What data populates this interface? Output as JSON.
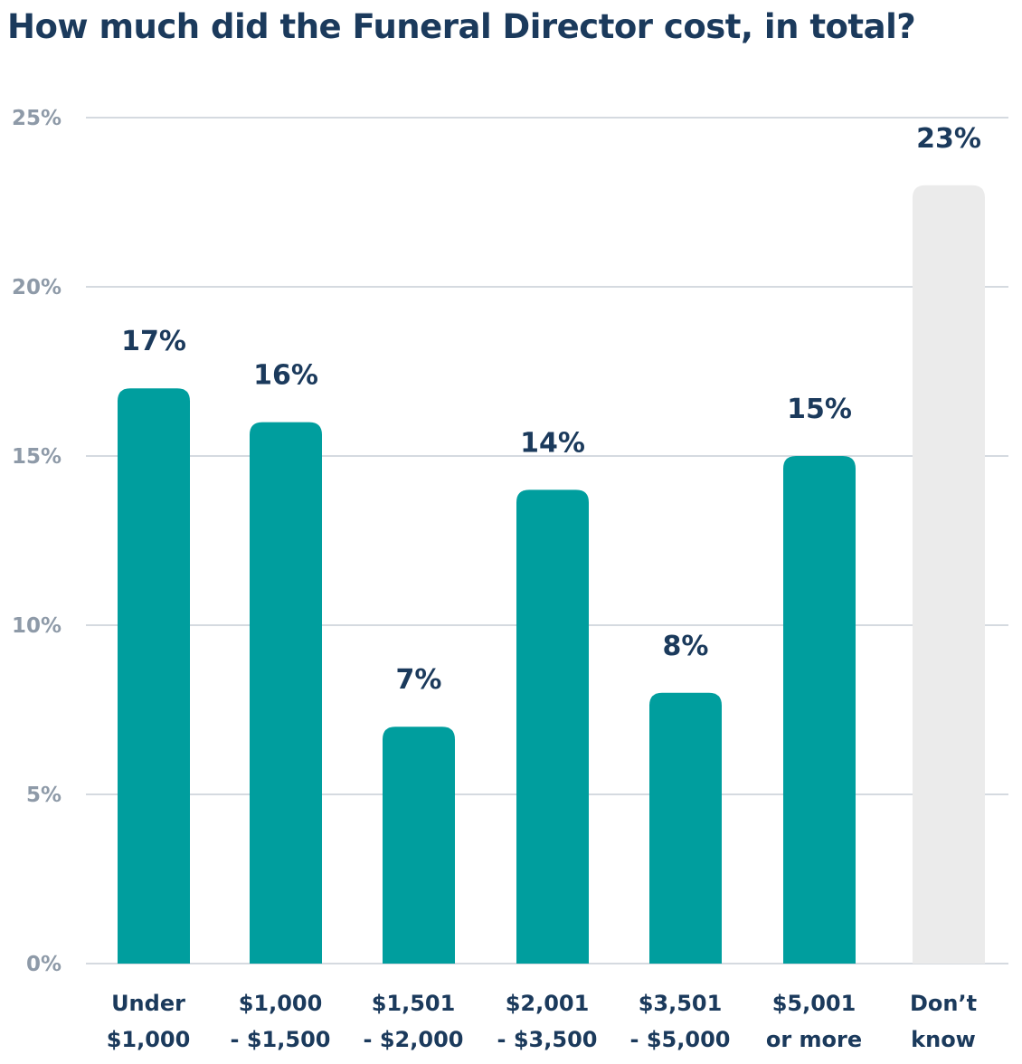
{
  "chart_data": {
    "type": "bar",
    "title": "How much did the Funeral Director cost, in total?",
    "categories": [
      [
        "Under",
        "$1,000"
      ],
      [
        "$1,000",
        "- $1,500"
      ],
      [
        "$1,501",
        "- $2,000"
      ],
      [
        "$2,001",
        "- $3,500"
      ],
      [
        "$3,501",
        "- $5,000"
      ],
      [
        "$5,001",
        "or more"
      ],
      [
        "Don’t",
        "know"
      ]
    ],
    "values": [
      17,
      16,
      7,
      14,
      8,
      15,
      23
    ],
    "value_labels": [
      "17%",
      "16%",
      "7%",
      "14%",
      "8%",
      "15%",
      "23%"
    ],
    "y_ticks": [
      0,
      5,
      10,
      15,
      20,
      25
    ],
    "y_tick_labels": [
      "0%",
      "5%",
      "10%",
      "15%",
      "20%",
      "25%"
    ],
    "ylim": [
      0,
      25
    ],
    "grid": true,
    "legend": "none",
    "colors": {
      "bar": "#009e9e",
      "dont_know_bar": "#ebebeb",
      "text": "#1b3a5c",
      "axis_text": "#8e9aa8",
      "gridline": "#d5dae0"
    }
  }
}
